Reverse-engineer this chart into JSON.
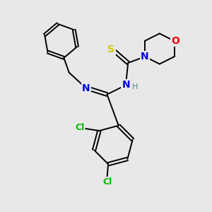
{
  "background_color": "#e8e8e8",
  "atom_colors": {
    "C": "#000000",
    "N": "#0000ee",
    "O": "#ee0000",
    "S": "#cccc00",
    "Cl": "#00bb00",
    "H": "#558888"
  },
  "figsize": [
    3.0,
    3.0
  ],
  "dpi": 100
}
